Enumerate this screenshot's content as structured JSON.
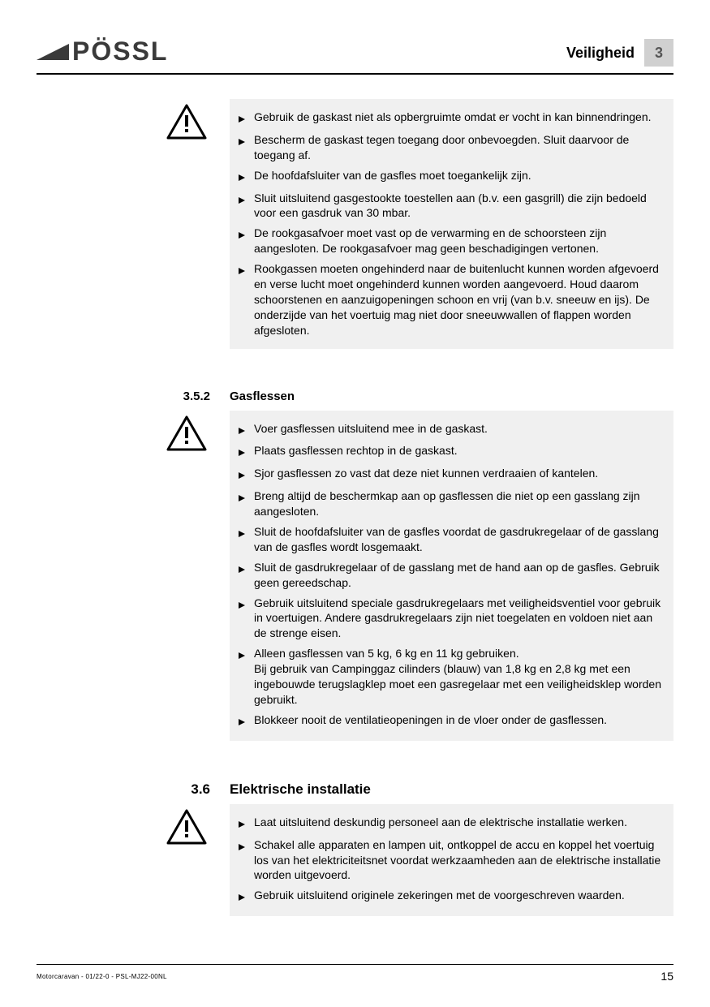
{
  "header": {
    "logo_text": "PÖSSL",
    "section_label": "Veiligheid",
    "chapter_number": "3"
  },
  "sections": [
    {
      "number": "",
      "heading": "",
      "heading_style": "none",
      "items": [
        "Gebruik de gaskast niet als opbergruimte omdat er vocht in kan binnendringen.",
        "Bescherm de gaskast tegen toegang door onbevoegden. Sluit daarvoor de toegang af.",
        "De hoofdafsluiter van de gasfles moet toegankelijk zijn.",
        "Sluit uitsluitend gasgestookte toestellen aan (b.v. een gasgrill) die zijn bedoeld voor een gasdruk van 30 mbar.",
        "De rookgasafvoer moet vast op de verwarming en de schoorsteen zijn aangesloten. De rookgasafvoer mag geen beschadigingen vertonen.",
        "Rookgassen moeten ongehinderd naar de buitenlucht kunnen worden afgevoerd en verse lucht moet ongehinderd kunnen worden aangevoerd. Houd daarom schoorstenen en aanzuigopeningen schoon en vrij (van b.v. sneeuw en ijs). De onderzijde van het voertuig mag niet door sneeuwwallen of flappen worden afgesloten."
      ]
    },
    {
      "number": "3.5.2",
      "heading": "Gasflessen",
      "heading_style": "small",
      "items": [
        "Voer gasflessen uitsluitend mee in de gaskast.",
        "Plaats gasflessen rechtop in de gaskast.",
        "Sjor gasflessen zo vast dat deze niet kunnen verdraaien of kantelen.",
        "Breng altijd de beschermkap aan op gasflessen die niet op een gasslang zijn aangesloten.",
        "Sluit de hoofdafsluiter van de gasfles voordat de gasdrukregelaar of de gasslang van de gasfles wordt losgemaakt.",
        "Sluit de gasdrukregelaar of de gasslang met de hand aan op de gasfles. Gebruik geen gereedschap.",
        "Gebruik uitsluitend speciale gasdrukregelaars met veiligheidsventiel voor gebruik in voertuigen. Andere gasdrukregelaars zijn niet toegelaten en voldoen niet aan de strenge eisen.",
        "Alleen gasflessen van 5 kg, 6 kg en 11 kg gebruiken.\nBij gebruik van Campinggaz cilinders (blauw) van 1,8 kg en 2,8 kg met een ingebouwde terugslagklep moet een gasregelaar met een veiligheidsklep worden gebruikt.",
        "Blokkeer nooit de ventilatieopeningen in de vloer onder de gasflessen."
      ]
    },
    {
      "number": "3.6",
      "heading": "Elektrische installatie",
      "heading_style": "big",
      "items": [
        "Laat uitsluitend deskundig personeel aan de elektrische installatie werken.",
        "Schakel alle apparaten en lampen uit, ontkoppel de accu en koppel het voertuig los van het elektriciteitsnet voordat werkzaamheden aan de elektrische installatie worden uitgevoerd.",
        "Gebruik uitsluitend originele zekeringen met de voorgeschreven waarden."
      ]
    }
  ],
  "footer": {
    "left_text": "Motorcaravan - 01/22-0 - PSL-MJ22-00NL",
    "page_number": "15"
  },
  "styling": {
    "background_color": "#ffffff",
    "box_background": "#f0f0f0",
    "chapter_box_bg": "#d0d0d0",
    "text_color": "#000000",
    "logo_color": "#3a3a3a",
    "body_fontsize": 14,
    "heading_fontsize": 15,
    "heading_big_fontsize": 17,
    "logo_fontsize": 32
  }
}
